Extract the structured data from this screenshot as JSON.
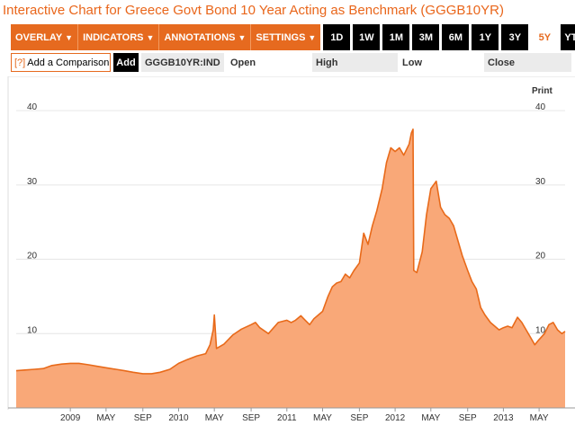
{
  "header": {
    "title": "Interactive Chart for Greece Govt Bond 10 Year Acting as Benchmark (GGGB10YR)"
  },
  "toolbar": {
    "menus": [
      {
        "label": "OVERLAY",
        "caret": "▼"
      },
      {
        "label": "INDICATORS",
        "caret": "▼"
      },
      {
        "label": "ANNOTATIONS",
        "caret": "▼"
      },
      {
        "label": "SETTINGS",
        "caret": "▼"
      }
    ],
    "ranges": [
      "1D",
      "1W",
      "1M",
      "3M",
      "6M",
      "1Y",
      "3Y",
      "5Y",
      "YTD"
    ],
    "active_range": "5Y"
  },
  "comparison": {
    "help": "[?]",
    "placeholder": "Add a Comparison",
    "add_label": "Add"
  },
  "quote": {
    "ticker": "GGGB10YR:IND",
    "open_label": "Open",
    "high_label": "High",
    "low_label": "Low",
    "close_label": "Close"
  },
  "print_label": "Print",
  "colors": {
    "accent": "#e66a1f",
    "fill": "#f9a878",
    "line": "#e86a1a"
  },
  "chart_data": {
    "type": "area",
    "xlabel": "",
    "ylabel": "",
    "ylim": [
      0,
      44
    ],
    "yticks": [
      10,
      20,
      30,
      40
    ],
    "grid": true,
    "xticks": [
      {
        "label": "2009",
        "t": 0.5
      },
      {
        "label": "MAY",
        "t": 0.83
      },
      {
        "label": "SEP",
        "t": 1.17
      },
      {
        "label": "2010",
        "t": 1.5
      },
      {
        "label": "MAY",
        "t": 1.83
      },
      {
        "label": "SEP",
        "t": 2.17
      },
      {
        "label": "2011",
        "t": 2.5
      },
      {
        "label": "MAY",
        "t": 2.83
      },
      {
        "label": "SEP",
        "t": 3.17
      },
      {
        "label": "2012",
        "t": 3.5
      },
      {
        "label": "MAY",
        "t": 3.83
      },
      {
        "label": "SEP",
        "t": 4.17
      },
      {
        "label": "2013",
        "t": 4.5
      },
      {
        "label": "MAY",
        "t": 4.83
      }
    ],
    "xrange": [
      0,
      5.07
    ],
    "series": [
      {
        "values": [
          [
            0.0,
            5.0
          ],
          [
            0.08,
            5.1
          ],
          [
            0.17,
            5.2
          ],
          [
            0.25,
            5.3
          ],
          [
            0.33,
            5.7
          ],
          [
            0.42,
            5.9
          ],
          [
            0.5,
            6.0
          ],
          [
            0.58,
            6.0
          ],
          [
            0.67,
            5.8
          ],
          [
            0.75,
            5.6
          ],
          [
            0.83,
            5.4
          ],
          [
            0.92,
            5.2
          ],
          [
            1.0,
            5.0
          ],
          [
            1.08,
            4.8
          ],
          [
            1.17,
            4.6
          ],
          [
            1.25,
            4.6
          ],
          [
            1.33,
            4.8
          ],
          [
            1.42,
            5.2
          ],
          [
            1.5,
            6.0
          ],
          [
            1.58,
            6.5
          ],
          [
            1.67,
            7.0
          ],
          [
            1.75,
            7.3
          ],
          [
            1.79,
            8.5
          ],
          [
            1.82,
            10.5
          ],
          [
            1.83,
            12.5
          ],
          [
            1.85,
            8.0
          ],
          [
            1.92,
            8.6
          ],
          [
            2.0,
            9.8
          ],
          [
            2.08,
            10.6
          ],
          [
            2.17,
            11.2
          ],
          [
            2.21,
            11.5
          ],
          [
            2.25,
            10.8
          ],
          [
            2.33,
            10.0
          ],
          [
            2.42,
            11.5
          ],
          [
            2.5,
            11.8
          ],
          [
            2.54,
            11.5
          ],
          [
            2.58,
            11.8
          ],
          [
            2.63,
            12.4
          ],
          [
            2.67,
            11.8
          ],
          [
            2.71,
            11.2
          ],
          [
            2.75,
            12.0
          ],
          [
            2.79,
            12.5
          ],
          [
            2.83,
            13.0
          ],
          [
            2.88,
            15.0
          ],
          [
            2.92,
            16.3
          ],
          [
            2.96,
            16.8
          ],
          [
            3.0,
            17.0
          ],
          [
            3.04,
            18.0
          ],
          [
            3.08,
            17.5
          ],
          [
            3.12,
            18.5
          ],
          [
            3.17,
            19.5
          ],
          [
            3.21,
            23.5
          ],
          [
            3.25,
            22.0
          ],
          [
            3.29,
            24.5
          ],
          [
            3.33,
            26.5
          ],
          [
            3.38,
            29.5
          ],
          [
            3.42,
            33.0
          ],
          [
            3.46,
            35.0
          ],
          [
            3.5,
            34.5
          ],
          [
            3.54,
            35.0
          ],
          [
            3.58,
            34.0
          ],
          [
            3.63,
            35.5
          ],
          [
            3.65,
            37.0
          ],
          [
            3.665,
            37.5
          ],
          [
            3.672,
            18.5
          ],
          [
            3.7,
            18.2
          ],
          [
            3.75,
            21.0
          ],
          [
            3.79,
            26.0
          ],
          [
            3.83,
            29.5
          ],
          [
            3.88,
            30.5
          ],
          [
            3.92,
            27.0
          ],
          [
            3.96,
            26.0
          ],
          [
            4.0,
            25.5
          ],
          [
            4.04,
            24.5
          ],
          [
            4.08,
            22.5
          ],
          [
            4.12,
            20.5
          ],
          [
            4.17,
            18.5
          ],
          [
            4.21,
            17.0
          ],
          [
            4.25,
            16.0
          ],
          [
            4.29,
            13.5
          ],
          [
            4.33,
            12.5
          ],
          [
            4.38,
            11.5
          ],
          [
            4.42,
            11.0
          ],
          [
            4.46,
            10.5
          ],
          [
            4.5,
            10.8
          ],
          [
            4.54,
            11.0
          ],
          [
            4.58,
            10.8
          ],
          [
            4.63,
            12.2
          ],
          [
            4.67,
            11.5
          ],
          [
            4.71,
            10.5
          ],
          [
            4.75,
            9.5
          ],
          [
            4.79,
            8.5
          ],
          [
            4.83,
            9.2
          ],
          [
            4.88,
            10.0
          ],
          [
            4.92,
            11.2
          ],
          [
            4.96,
            11.5
          ],
          [
            5.0,
            10.5
          ],
          [
            5.04,
            10.0
          ],
          [
            5.07,
            10.3
          ]
        ]
      }
    ]
  }
}
